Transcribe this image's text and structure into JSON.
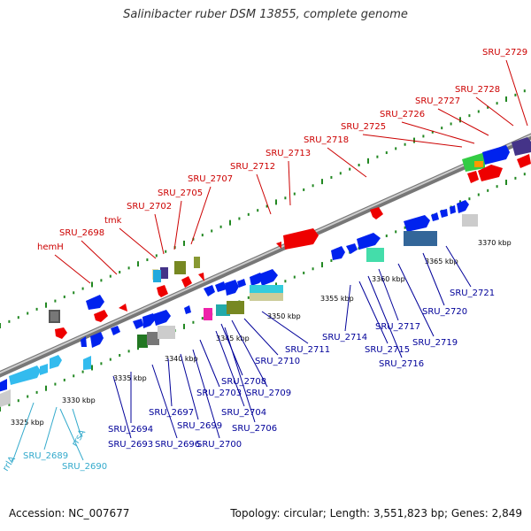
{
  "title": "Salinibacter ruber DSM 13855, complete genome",
  "footer": {
    "accession": "Accession: NC_007677",
    "info": "Topology: circular; Length: 3,551,823 bp; Genes: 2,849"
  },
  "colors": {
    "top_labels": "#cc0000",
    "bottom_labels": "#000099",
    "rna_labels": "#33aacc",
    "backbone": "#888888",
    "ticks": "#228822"
  },
  "kbp_labels": [
    "3325 kbp",
    "3330 kbp",
    "3335 kbp",
    "3340 kbp",
    "3345 kbp",
    "3350 kbp",
    "3355 kbp",
    "3360 kbp",
    "3365 kbp",
    "3370 kbp"
  ],
  "top_genes": [
    "hemH",
    "SRU_2698",
    "tmk",
    "SRU_2702",
    "SRU_2705",
    "SRU_2707",
    "SRU_2712",
    "SRU_2713",
    "SRU_2718",
    "SRU_2725",
    "SRU_2726",
    "SRU_2727",
    "SRU_2728",
    "SRU_2729"
  ],
  "bottom_genes": [
    "SRU_2693",
    "SRU_2694",
    "SRU_2696",
    "SRU_2697",
    "SRU_2699",
    "SRU_2700",
    "SRU_2703",
    "SRU_2704",
    "SRU_2706",
    "SRU_2708",
    "SRU_2709",
    "SRU_2710",
    "SRU_2711",
    "SRU_2714",
    "SRU_2715",
    "SRU_2716",
    "SRU_2717",
    "SRU_2719",
    "SRU_2720",
    "SRU_2721"
  ],
  "rna_genes": [
    "rrlA",
    "SRU_2689",
    "rrsA",
    "SRU_2690"
  ]
}
